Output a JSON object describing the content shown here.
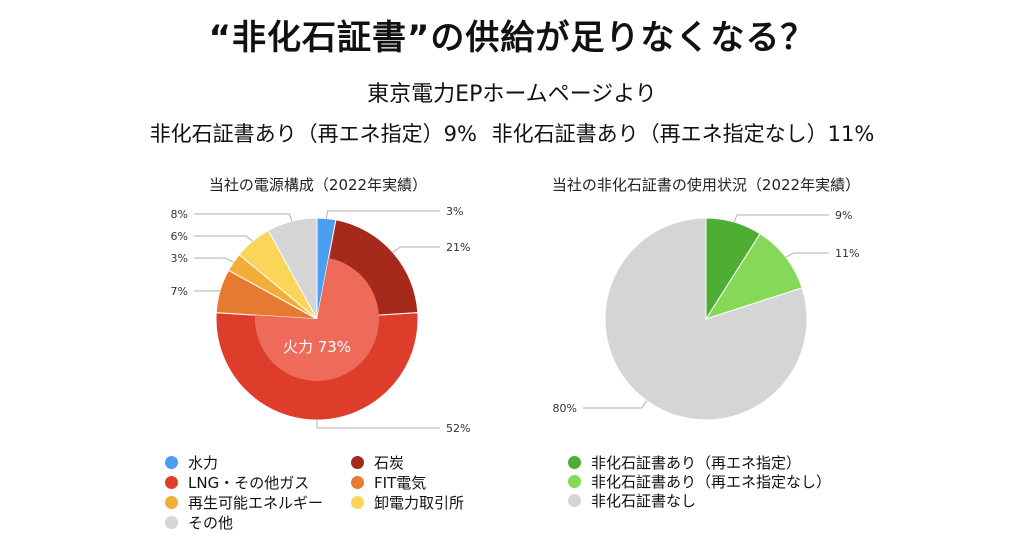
{
  "header": {
    "title": "“非化石証書”の供給が足りなくなる？",
    "source": "東京電力EPホームページより",
    "summary": [
      "非化石証書あり（再エネ指定）9%",
      "非化石証書あり（再エネ指定なし）11%"
    ]
  },
  "colors": {
    "hydro": "#4b9ff1",
    "coal": "#a52a1c",
    "lng": "#df3d2c",
    "lng_inner": "#ee6b59",
    "fit": "#e57a30",
    "renewable": "#f2ae37",
    "jepx": "#f9d65a",
    "other": "#d5d5d5",
    "nf_re": "#4ead33",
    "nf_nonre": "#86d857",
    "nf_none": "#d5d5d5"
  },
  "chart_data": [
    {
      "type": "pie",
      "title": "当社の電源構成（2022年実績）",
      "categories": [
        "水力",
        "石炭",
        "LNG・その他ガス",
        "FIT電気",
        "再生可能エネルギー",
        "卸電力取引所",
        "その他"
      ],
      "values": [
        3,
        21,
        52,
        7,
        3,
        6,
        8
      ],
      "data_labels": [
        "3%",
        "21%",
        "52%",
        "7%",
        "3%",
        "6%",
        "8%"
      ],
      "inner_ring": {
        "label": "火力 73%",
        "value": 73
      },
      "legend": "bottom"
    },
    {
      "type": "pie",
      "title": "当社の非化石証書の使用状況（2022年実績）",
      "categories": [
        "非化石証書あり（再エネ指定）",
        "非化石証書あり（再エネ指定なし）",
        "非化石証書なし"
      ],
      "values": [
        9,
        11,
        80
      ],
      "data_labels": [
        "9%",
        "11%",
        "80%"
      ],
      "legend": "bottom"
    }
  ]
}
